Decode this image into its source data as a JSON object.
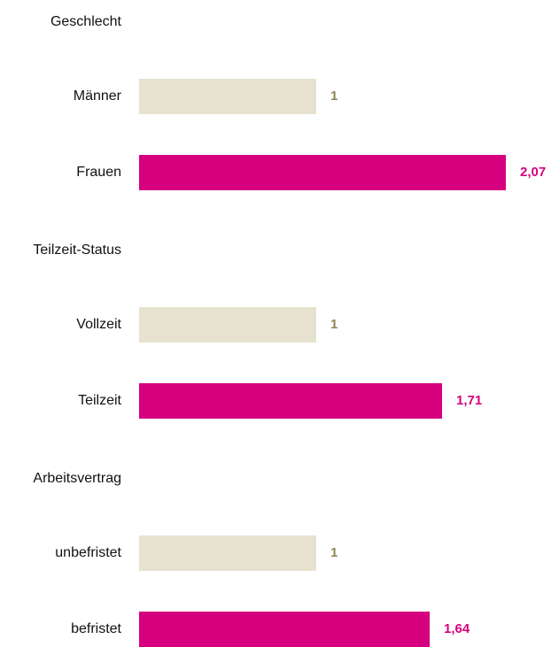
{
  "chart_data": {
    "type": "bar",
    "colors": [
      "#e6e2cf",
      "#d6007e"
    ],
    "label_colors": [
      "#8f8456",
      "#d6007e"
    ],
    "groups": [
      {
        "title": "Geschlecht",
        "categories": [
          "Männer",
          "Frauen"
        ],
        "values": [
          1,
          2.07
        ],
        "value_labels": [
          "1",
          "2,07"
        ]
      },
      {
        "title": "Teilzeit-Status",
        "categories": [
          "Vollzeit",
          "Teilzeit"
        ],
        "values": [
          1,
          1.71
        ],
        "value_labels": [
          "1",
          "1,71"
        ]
      },
      {
        "title": "Arbeitsvertrag",
        "categories": [
          "unbefristet",
          "befristet"
        ],
        "values": [
          1,
          1.64
        ],
        "value_labels": [
          "1",
          "1,64"
        ]
      }
    ]
  }
}
